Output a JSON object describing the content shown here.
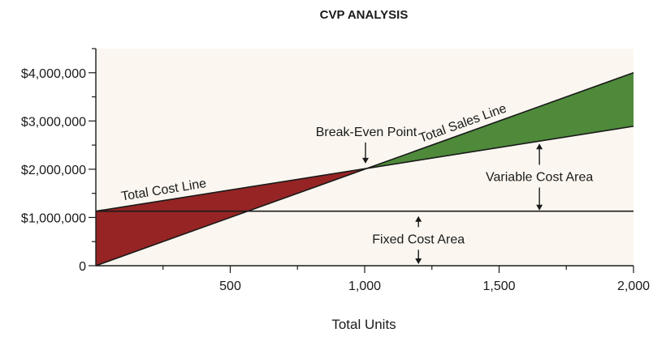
{
  "chart_data": {
    "type": "line",
    "title": "CVP ANALYSIS",
    "xlabel": "Total Units",
    "ylabel": "",
    "xlim": [
      0,
      2000
    ],
    "ylim": [
      0,
      4500000
    ],
    "x_ticks": [
      500,
      1000,
      1500,
      2000
    ],
    "x_tick_labels": [
      "500",
      "1,000",
      "1,500",
      "2,000"
    ],
    "y_ticks": [
      0,
      1000000,
      2000000,
      3000000,
      4000000
    ],
    "y_tick_labels": [
      "0",
      "$1,000,000",
      "$2,000,000",
      "$3,000,000",
      "$4,000,000"
    ],
    "grid": false,
    "series": [
      {
        "name": "Total Sales Line",
        "x": [
          0,
          1000,
          2000
        ],
        "y": [
          0,
          2000000,
          4000000
        ]
      },
      {
        "name": "Total Cost Line",
        "x": [
          0,
          1000,
          2000
        ],
        "y": [
          1130000,
          2000000,
          2890000
        ]
      },
      {
        "name": "",
        "x": [
          0,
          2000
        ],
        "y": [
          1130000,
          1130000
        ]
      }
    ],
    "annotations": {
      "break_even": {
        "label": "Break-Even Point",
        "x": 1000,
        "y": 2000000
      },
      "variable_cost": {
        "label": "Variable Cost Area",
        "x": 1650
      },
      "fixed_cost": {
        "label": "Fixed Cost Area",
        "x": 1200
      }
    },
    "colors": {
      "plot_background": "#fbf7f0",
      "loss_area": "#962424",
      "profit_area": "#4e8a3a",
      "line": "#1a1a1a"
    }
  }
}
